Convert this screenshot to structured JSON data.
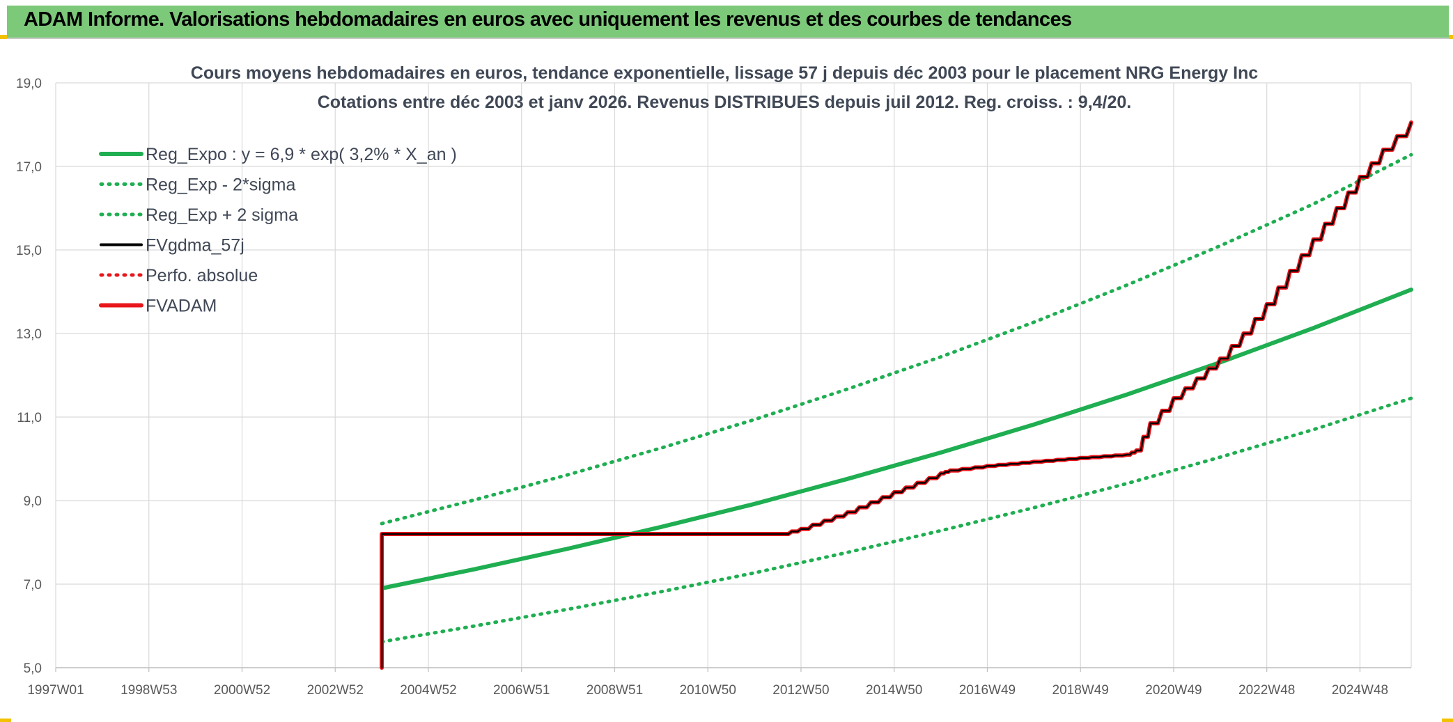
{
  "header": {
    "title": "ADAM Informe. Valorisations hebdomadaires en euros avec uniquement les revenus et des courbes de tendances"
  },
  "colors": {
    "header_bg": "#7dc97a",
    "green": "#1fae51",
    "red": "#e8161b",
    "black": "#000000",
    "grid": "#d9d9d9"
  },
  "chart_data": {
    "type": "line",
    "title": "Cours moyens hebdomadaires en euros, tendance exponentielle, lissage 57 j depuis déc 2003 pour le placement NRG Energy Inc",
    "subtitle": "Cotations entre déc 2003 et janv 2026. Revenus DISTRIBUES depuis juil 2012. Reg. croiss. : 9,4/20.",
    "xlabel": "",
    "ylabel": "",
    "x_range": [
      1997.0,
      2026.1
    ],
    "ylim": [
      5.0,
      19.0
    ],
    "y_ticks": [
      "5,0",
      "7,0",
      "9,0",
      "11,0",
      "13,0",
      "15,0",
      "17,0",
      "19,0"
    ],
    "y_tick_values": [
      5,
      7,
      9,
      11,
      13,
      15,
      17,
      19
    ],
    "x_tick_labels": [
      "1997W01",
      "1998W53",
      "2000W52",
      "2002W52",
      "2004W52",
      "2006W51",
      "2008W51",
      "2010W50",
      "2012W50",
      "2014W50",
      "2016W49",
      "2018W49",
      "2020W49",
      "2022W48",
      "2024W48"
    ],
    "x_tick_values": [
      1997.0,
      1999.0,
      2001.0,
      2003.0,
      2005.0,
      2007.0,
      2009.0,
      2011.0,
      2013.0,
      2015.0,
      2017.0,
      2019.0,
      2021.0,
      2023.0,
      2025.0
    ],
    "grid": true,
    "legend_position": "top-left",
    "series": [
      {
        "name": "Reg_Expo : y = 6,9 * exp( 3,2% *  X_an )",
        "style": "solid-thick",
        "color": "#1fae51",
        "x": [
          2004.0,
          2006.0,
          2008.0,
          2010.0,
          2012.0,
          2014.0,
          2016.0,
          2018.0,
          2020.0,
          2022.0,
          2024.0,
          2026.1
        ],
        "y": [
          6.9,
          7.36,
          7.85,
          8.37,
          8.92,
          9.52,
          10.15,
          10.82,
          11.54,
          12.31,
          13.13,
          14.05
        ]
      },
      {
        "name": "Reg_Exp - 2*sigma",
        "style": "dotted",
        "color": "#1fae51",
        "x": [
          2004.0,
          2006.0,
          2008.0,
          2010.0,
          2012.0,
          2014.0,
          2016.0,
          2018.0,
          2020.0,
          2022.0,
          2024.0,
          2026.1
        ],
        "y": [
          5.62,
          6.0,
          6.4,
          6.82,
          7.27,
          7.76,
          8.28,
          8.83,
          9.41,
          10.04,
          10.7,
          11.45
        ]
      },
      {
        "name": "Reg_Exp + 2 sigma",
        "style": "dotted",
        "color": "#1fae51",
        "x": [
          2004.0,
          2006.0,
          2008.0,
          2010.0,
          2012.0,
          2014.0,
          2016.0,
          2018.0,
          2020.0,
          2022.0,
          2024.0,
          2026.1
        ],
        "y": [
          8.45,
          9.02,
          9.62,
          10.26,
          10.94,
          11.67,
          12.44,
          13.27,
          14.16,
          15.1,
          16.1,
          17.28
        ]
      },
      {
        "name": "FVgdma_57j",
        "style": "solid",
        "color": "#000000",
        "x": [
          2004.0,
          2004.0,
          2012.6,
          2013.0,
          2014.0,
          2015.0,
          2016.0,
          2016.2,
          2017.0,
          2018.0,
          2019.0,
          2020.0,
          2020.2,
          2020.5,
          2021.0,
          2022.0,
          2022.5,
          2023.0,
          2023.5,
          2024.0,
          2024.5,
          2025.0,
          2025.5,
          2026.1
        ],
        "y": [
          5.0,
          8.2,
          8.2,
          8.32,
          8.72,
          9.2,
          9.65,
          9.72,
          9.83,
          9.93,
          10.02,
          10.1,
          10.2,
          10.85,
          11.45,
          12.4,
          13.0,
          13.7,
          14.5,
          15.25,
          16.0,
          16.75,
          17.4,
          18.05
        ]
      },
      {
        "name": "Perfo. absolue",
        "style": "dotted",
        "color": "#e8161b",
        "x": [],
        "y": []
      },
      {
        "name": "FVADAM",
        "style": "solid-thick",
        "color": "#e8161b",
        "x": [
          2004.0,
          2004.0,
          2012.6,
          2013.0,
          2014.0,
          2015.0,
          2016.0,
          2016.2,
          2017.0,
          2018.0,
          2019.0,
          2020.0,
          2020.2,
          2020.5,
          2021.0,
          2022.0,
          2022.5,
          2023.0,
          2023.5,
          2024.0,
          2024.5,
          2025.0,
          2025.5,
          2026.1
        ],
        "y": [
          5.0,
          8.2,
          8.2,
          8.32,
          8.72,
          9.2,
          9.65,
          9.72,
          9.83,
          9.93,
          10.02,
          10.1,
          10.2,
          10.85,
          11.45,
          12.4,
          13.0,
          13.7,
          14.5,
          15.25,
          16.0,
          16.75,
          17.4,
          18.05
        ]
      }
    ]
  }
}
